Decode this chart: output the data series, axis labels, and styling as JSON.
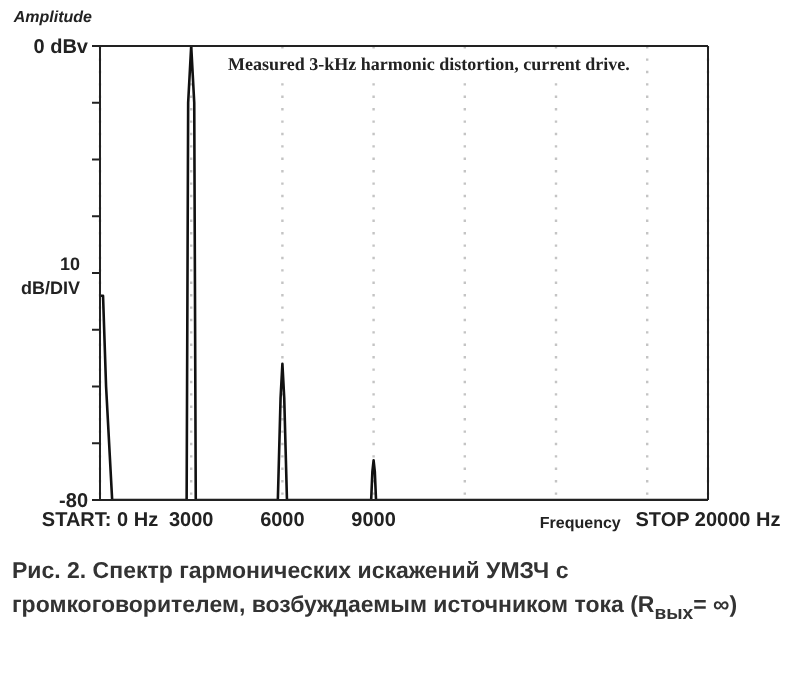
{
  "chart_data": {
    "type": "line",
    "title": "Measured 3-kHz harmonic distortion, current drive.",
    "xlabel": "Frequency",
    "ylabel": "Amplitude",
    "x": [
      0,
      100,
      200,
      400,
      2850,
      2900,
      3000,
      3100,
      3150,
      5850,
      5940,
      6000,
      6060,
      6150,
      8920,
      8960,
      9000,
      9040,
      9080,
      20000
    ],
    "series": [
      {
        "color": "#111111",
        "values": [
          -44,
          -44,
          -60,
          -80,
          -80,
          -10,
          0,
          -10,
          -80,
          -80,
          -62,
          -56,
          -62,
          -80,
          -80,
          -75,
          -73,
          -75,
          -80,
          -80
        ]
      }
    ],
    "xlim": [
      0,
      20000
    ],
    "xticks": [
      {
        "value": 0,
        "label": "START: 0 Hz"
      },
      3000,
      6000,
      9000,
      {
        "value": 12000,
        "label": null
      },
      {
        "value": 15000,
        "label": null
      },
      {
        "value": 18000,
        "label": null
      },
      {
        "value": 20000,
        "label": "STOP 20000 Hz"
      }
    ],
    "ylim": [
      -80,
      0
    ],
    "yticks": [
      {
        "value": -80,
        "label": "-80"
      },
      {
        "value": -70,
        "label": null
      },
      {
        "value": -60,
        "label": null
      },
      {
        "value": -50,
        "label": null
      },
      {
        "value": -40,
        "label": null
      },
      {
        "value": -30,
        "label": null
      },
      {
        "value": -20,
        "label": null
      },
      {
        "value": -10,
        "label": null
      },
      {
        "value": 0,
        "label": "0 dBv"
      }
    ],
    "grid": "x",
    "legend": false,
    "annotations": [
      "10 dB/DIV",
      "Рис. 2. Спектр гармонических искажений УМЗЧ с громкоговорителем, возбуждаемым источником тока (R$_{вых}$= ∞)"
    ]
  }
}
